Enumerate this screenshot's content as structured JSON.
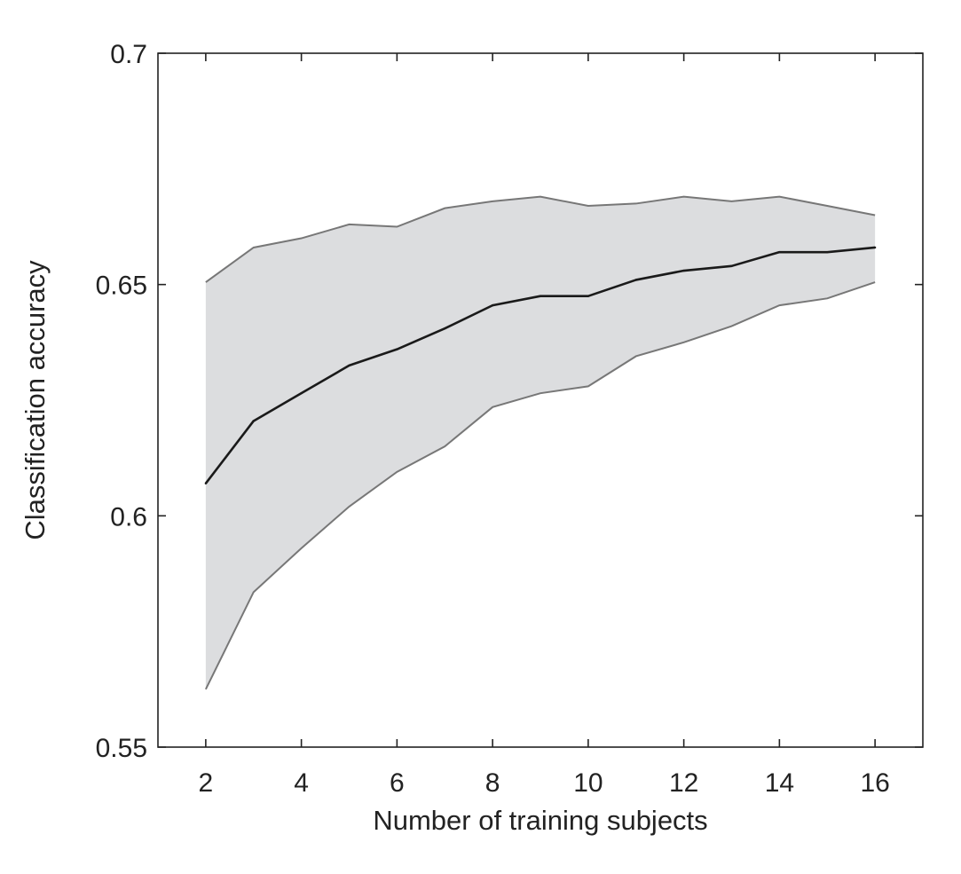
{
  "chart_data": {
    "type": "line",
    "title": "",
    "xlabel": "Number of training subjects",
    "ylabel": "Classification accuracy",
    "xlim": [
      1,
      17
    ],
    "ylim": [
      0.55,
      0.7
    ],
    "xticks": [
      2,
      4,
      6,
      8,
      10,
      12,
      14,
      16
    ],
    "xtick_labels": [
      "2",
      "4",
      "6",
      "8",
      "10",
      "12",
      "14",
      "16"
    ],
    "yticks": [
      0.55,
      0.6,
      0.65,
      0.7
    ],
    "ytick_labels": [
      "0.55",
      "0.6",
      "0.65",
      "0.7"
    ],
    "grid": false,
    "x": [
      2,
      3,
      4,
      5,
      6,
      7,
      8,
      9,
      10,
      11,
      12,
      13,
      14,
      15,
      16
    ],
    "series": [
      {
        "name": "mean",
        "values": [
          0.607,
          0.6205,
          0.6265,
          0.6325,
          0.636,
          0.6405,
          0.6455,
          0.6475,
          0.6475,
          0.651,
          0.653,
          0.654,
          0.657,
          0.657,
          0.658
        ]
      },
      {
        "name": "upper",
        "values": [
          0.6505,
          0.658,
          0.66,
          0.663,
          0.6625,
          0.6665,
          0.668,
          0.669,
          0.667,
          0.6675,
          0.669,
          0.668,
          0.669,
          0.667,
          0.665
        ]
      },
      {
        "name": "lower",
        "values": [
          0.5625,
          0.5835,
          0.593,
          0.602,
          0.6095,
          0.615,
          0.6235,
          0.6265,
          0.628,
          0.6345,
          0.6375,
          0.641,
          0.6455,
          0.647,
          0.6505
        ]
      }
    ],
    "colors": {
      "band_fill": "#dcdddf",
      "band_edge": "#777777",
      "mean_line": "#1a1a1a",
      "axis": "#222222"
    }
  }
}
